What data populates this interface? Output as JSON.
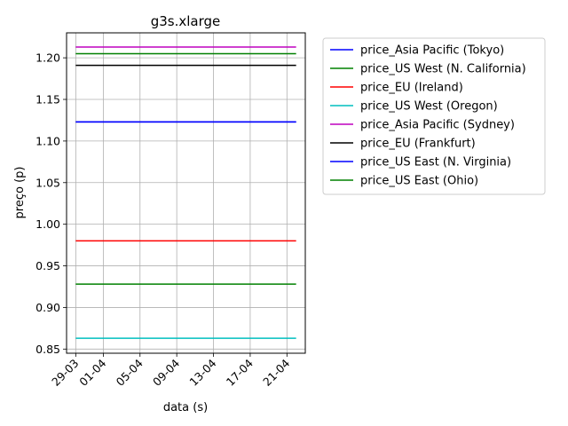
{
  "chart_data": {
    "type": "line",
    "title": "g3s.xlarge",
    "xlabel": "data (s)",
    "ylabel": "preço (p)",
    "x_ticks": [
      "29-03",
      "01-04",
      "05-04",
      "09-04",
      "13-04",
      "17-04",
      "21-04"
    ],
    "x_tick_dates": [
      "2019-03-29",
      "2019-04-01",
      "2019-04-05",
      "2019-04-09",
      "2019-04-13",
      "2019-04-17",
      "2019-04-21"
    ],
    "xlim": [
      "2019-03-28",
      "2019-04-23"
    ],
    "x": [
      "2019-03-29",
      "2019-04-22"
    ],
    "y_ticks": [
      "0.85",
      "0.90",
      "0.95",
      "1.00",
      "1.05",
      "1.10",
      "1.15",
      "1.20"
    ],
    "ylim": [
      0.845,
      1.23
    ],
    "grid": true,
    "legend_position": "outside-right",
    "series": [
      {
        "name": "price_Asia Pacific (Tokyo)",
        "color": "#0000ff",
        "values": [
          1.123,
          1.123
        ]
      },
      {
        "name": "price_US West (N. California)",
        "color": "#008000",
        "values": [
          1.205,
          1.205
        ]
      },
      {
        "name": "price_EU (Ireland)",
        "color": "#ff0000",
        "values": [
          0.98,
          0.98
        ]
      },
      {
        "name": "price_US West (Oregon)",
        "color": "#00bfbf",
        "values": [
          0.863,
          0.863
        ]
      },
      {
        "name": "price_Asia Pacific (Sydney)",
        "color": "#bf00bf",
        "values": [
          1.213,
          1.213
        ]
      },
      {
        "name": "price_EU (Frankfurt)",
        "color": "#000000",
        "values": [
          1.191,
          1.191
        ]
      },
      {
        "name": "price_US East (N. Virginia)",
        "color": "#0000ff",
        "values": [
          1.123,
          1.123
        ]
      },
      {
        "name": "price_US East (Ohio)",
        "color": "#008000",
        "values": [
          0.928,
          0.928
        ]
      }
    ]
  }
}
